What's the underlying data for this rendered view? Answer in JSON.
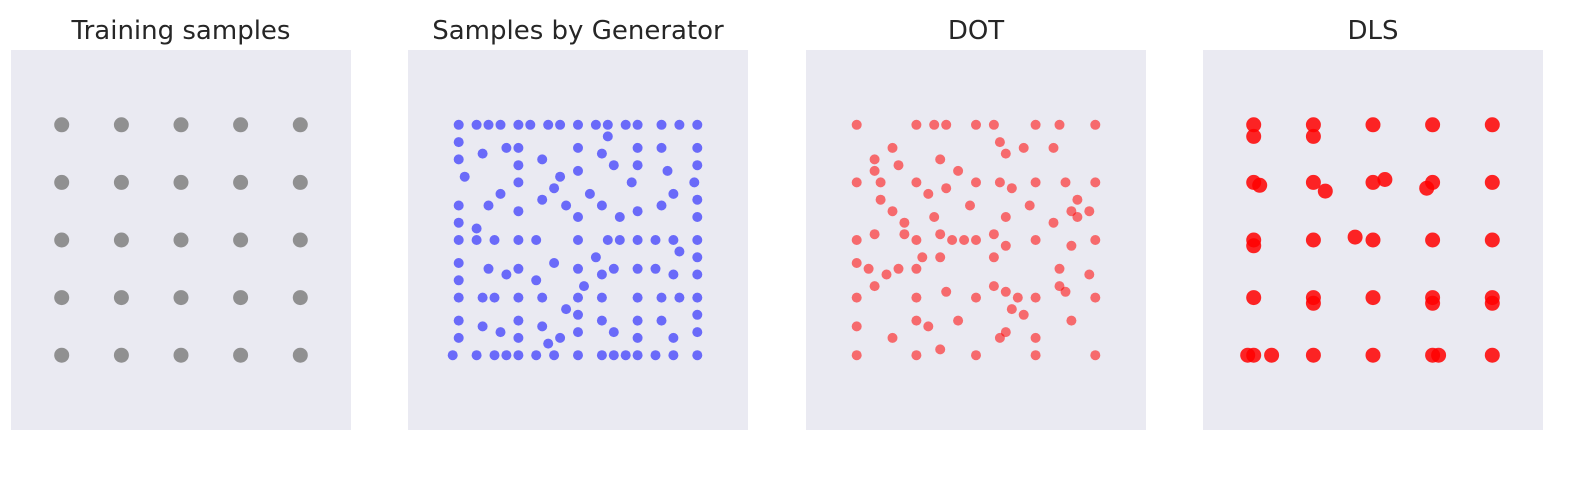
{
  "chart_data": [
    {
      "type": "scatter",
      "title": "Training samples",
      "color": "#808080",
      "grid": false,
      "axes_visible": false,
      "xlim": [
        -2.85,
        2.85
      ],
      "ylim": [
        -3.3,
        3.3
      ],
      "points": [
        [
          -2,
          2
        ],
        [
          -1,
          2
        ],
        [
          0,
          2
        ],
        [
          1,
          2
        ],
        [
          2,
          2
        ],
        [
          -2,
          1
        ],
        [
          -1,
          1
        ],
        [
          0,
          1
        ],
        [
          1,
          1
        ],
        [
          2,
          1
        ],
        [
          -2,
          0
        ],
        [
          -1,
          0
        ],
        [
          0,
          0
        ],
        [
          1,
          0
        ],
        [
          2,
          0
        ],
        [
          -2,
          -1
        ],
        [
          -1,
          -1
        ],
        [
          0,
          -1
        ],
        [
          1,
          -1
        ],
        [
          2,
          -1
        ],
        [
          -2,
          -2
        ],
        [
          -1,
          -2
        ],
        [
          0,
          -2
        ],
        [
          1,
          -2
        ],
        [
          2,
          -2
        ]
      ]
    },
    {
      "type": "scatter",
      "title": "Samples by Generator",
      "color": "#0000ff",
      "grid": false,
      "axes_visible": false,
      "xlim": [
        -2.85,
        2.85
      ],
      "ylim": [
        -3.3,
        3.3
      ],
      "points": [
        [
          -2.0,
          2.0
        ],
        [
          -1.0,
          2.0
        ],
        [
          0.0,
          2.0
        ],
        [
          1.0,
          2.0
        ],
        [
          2.0,
          2.0
        ],
        [
          -2.0,
          0.0
        ],
        [
          -1.0,
          0.0
        ],
        [
          0.0,
          0.0
        ],
        [
          1.0,
          0.0
        ],
        [
          2.0,
          0.0
        ],
        [
          -2.0,
          -1.0
        ],
        [
          -1.0,
          -1.0
        ],
        [
          0.0,
          -1.0
        ],
        [
          1.0,
          -1.0
        ],
        [
          2.0,
          -1.0
        ],
        [
          -2.1,
          -2.0
        ],
        [
          -1.0,
          -2.0
        ],
        [
          0.0,
          -2.0
        ],
        [
          1.0,
          -2.0
        ],
        [
          2.0,
          -2.0
        ],
        [
          -1.9,
          1.1
        ],
        [
          -1.0,
          1.0
        ],
        [
          0.9,
          1.0
        ],
        [
          1.95,
          1.0
        ],
        [
          0.2,
          0.8
        ],
        [
          -1.7,
          2.0
        ],
        [
          -1.5,
          2.0
        ],
        [
          -1.3,
          2.0
        ],
        [
          -0.8,
          2.0
        ],
        [
          -0.5,
          2.0
        ],
        [
          -0.3,
          2.0
        ],
        [
          0.3,
          2.0
        ],
        [
          0.5,
          2.0
        ],
        [
          0.8,
          2.0
        ],
        [
          1.4,
          2.0
        ],
        [
          1.7,
          2.0
        ],
        [
          -1.7,
          -2.0
        ],
        [
          -1.4,
          -2.0
        ],
        [
          -1.2,
          -2.0
        ],
        [
          -0.7,
          -2.0
        ],
        [
          -0.4,
          -2.0
        ],
        [
          0.4,
          -2.0
        ],
        [
          0.6,
          -2.0
        ],
        [
          0.8,
          -2.0
        ],
        [
          1.3,
          -2.0
        ],
        [
          1.6,
          -2.0
        ],
        [
          -1.7,
          0.0
        ],
        [
          -1.4,
          0.0
        ],
        [
          -0.7,
          0.0
        ],
        [
          0.5,
          0.0
        ],
        [
          0.7,
          0.0
        ],
        [
          1.3,
          0.0
        ],
        [
          1.6,
          0.0
        ],
        [
          -1.6,
          -1.0
        ],
        [
          -1.4,
          -1.0
        ],
        [
          -0.6,
          -1.0
        ],
        [
          0.4,
          -1.0
        ],
        [
          1.4,
          -1.0
        ],
        [
          1.7,
          -1.0
        ],
        [
          -2.0,
          1.7
        ],
        [
          -2.0,
          1.4
        ],
        [
          -2.0,
          0.6
        ],
        [
          -2.0,
          0.3
        ],
        [
          -2.0,
          -0.4
        ],
        [
          -2.0,
          -0.7
        ],
        [
          -2.0,
          -1.4
        ],
        [
          -2.0,
          -1.7
        ],
        [
          2.0,
          1.6
        ],
        [
          2.0,
          1.3
        ],
        [
          2.0,
          0.7
        ],
        [
          2.0,
          0.4
        ],
        [
          2.0,
          -0.3
        ],
        [
          2.0,
          -0.6
        ],
        [
          2.0,
          -1.3
        ],
        [
          2.0,
          -1.6
        ],
        [
          -1.0,
          1.6
        ],
        [
          -1.0,
          1.3
        ],
        [
          0.0,
          1.6
        ],
        [
          0.0,
          1.2
        ],
        [
          1.0,
          1.6
        ],
        [
          1.0,
          1.3
        ],
        [
          -1.0,
          -1.4
        ],
        [
          -1.0,
          -1.7
        ],
        [
          0.0,
          -1.3
        ],
        [
          0.0,
          -1.6
        ],
        [
          1.0,
          -1.4
        ],
        [
          1.0,
          -1.7
        ],
        [
          -1.0,
          0.5
        ],
        [
          -1.0,
          -0.5
        ],
        [
          0.0,
          0.4
        ],
        [
          0.0,
          -0.5
        ],
        [
          1.0,
          0.5
        ],
        [
          1.0,
          -0.5
        ],
        [
          -1.6,
          1.5
        ],
        [
          -1.2,
          1.6
        ],
        [
          -0.6,
          1.4
        ],
        [
          -0.3,
          1.1
        ],
        [
          0.4,
          1.5
        ],
        [
          0.6,
          1.3
        ],
        [
          1.4,
          1.6
        ],
        [
          1.5,
          1.2
        ],
        [
          -1.5,
          0.6
        ],
        [
          -1.3,
          0.8
        ],
        [
          -0.6,
          0.7
        ],
        [
          -0.2,
          0.6
        ],
        [
          0.4,
          0.6
        ],
        [
          0.7,
          0.4
        ],
        [
          1.4,
          0.6
        ],
        [
          1.6,
          0.8
        ],
        [
          -1.5,
          -0.5
        ],
        [
          -1.2,
          -0.6
        ],
        [
          -0.4,
          -0.4
        ],
        [
          -0.7,
          -0.7
        ],
        [
          0.4,
          -0.6
        ],
        [
          0.6,
          -0.5
        ],
        [
          1.3,
          -0.5
        ],
        [
          1.6,
          -0.6
        ],
        [
          -1.6,
          -1.5
        ],
        [
          -1.3,
          -1.6
        ],
        [
          -0.6,
          -1.5
        ],
        [
          -0.3,
          -1.7
        ],
        [
          0.4,
          -1.4
        ],
        [
          0.6,
          -1.6
        ],
        [
          1.4,
          -1.4
        ],
        [
          1.6,
          -1.7
        ],
        [
          -0.4,
          0.9
        ],
        [
          0.3,
          -0.3
        ],
        [
          -0.2,
          -1.2
        ],
        [
          0.5,
          1.8
        ],
        [
          -0.5,
          -1.8
        ],
        [
          1.7,
          -0.2
        ],
        [
          -1.7,
          0.2
        ],
        [
          0.1,
          -0.8
        ]
      ]
    },
    {
      "type": "scatter",
      "title": "DOT",
      "color": "#ff0000",
      "grid": false,
      "axes_visible": false,
      "xlim": [
        -2.85,
        2.85
      ],
      "ylim": [
        -3.3,
        3.3
      ],
      "points": [
        [
          -2.0,
          2.0
        ],
        [
          -1.0,
          2.0
        ],
        [
          0.0,
          2.0
        ],
        [
          1.0,
          2.0
        ],
        [
          2.0,
          2.0
        ],
        [
          -2.0,
          1.0
        ],
        [
          -1.0,
          1.0
        ],
        [
          0.0,
          1.0
        ],
        [
          1.0,
          1.0
        ],
        [
          2.0,
          1.0
        ],
        [
          -2.0,
          0.0
        ],
        [
          -1.0,
          0.0
        ],
        [
          0.0,
          0.0
        ],
        [
          1.0,
          0.0
        ],
        [
          2.0,
          0.0
        ],
        [
          -2.0,
          -1.0
        ],
        [
          -1.0,
          -1.0
        ],
        [
          0.0,
          -1.0
        ],
        [
          1.0,
          -1.0
        ],
        [
          2.0,
          -1.0
        ],
        [
          -2.0,
          -2.0
        ],
        [
          -1.0,
          -2.0
        ],
        [
          0.0,
          -2.0
        ],
        [
          1.0,
          -2.0
        ],
        [
          2.0,
          -2.0
        ],
        [
          -0.7,
          2.0
        ],
        [
          -0.5,
          2.0
        ],
        [
          0.3,
          2.0
        ],
        [
          1.4,
          2.0
        ],
        [
          -1.4,
          1.6
        ],
        [
          -1.7,
          1.4
        ],
        [
          -1.7,
          1.2
        ],
        [
          -1.3,
          1.3
        ],
        [
          -0.6,
          1.4
        ],
        [
          -0.3,
          1.2
        ],
        [
          0.4,
          1.7
        ],
        [
          0.5,
          1.5
        ],
        [
          0.8,
          1.6
        ],
        [
          1.3,
          1.6
        ],
        [
          -1.6,
          1.0
        ],
        [
          -0.8,
          0.8
        ],
        [
          -0.5,
          0.9
        ],
        [
          0.4,
          1.0
        ],
        [
          0.6,
          0.9
        ],
        [
          1.5,
          1.0
        ],
        [
          1.7,
          0.7
        ],
        [
          -1.6,
          0.7
        ],
        [
          -1.4,
          0.5
        ],
        [
          -1.2,
          0.3
        ],
        [
          -0.7,
          0.4
        ],
        [
          -0.6,
          0.1
        ],
        [
          -0.1,
          0.6
        ],
        [
          0.5,
          0.4
        ],
        [
          0.9,
          0.6
        ],
        [
          1.3,
          0.3
        ],
        [
          1.6,
          0.5
        ],
        [
          1.7,
          0.4
        ],
        [
          1.9,
          0.5
        ],
        [
          -1.7,
          0.1
        ],
        [
          -1.2,
          0.1
        ],
        [
          -0.4,
          0.0
        ],
        [
          -0.2,
          0.0
        ],
        [
          0.3,
          0.1
        ],
        [
          0.5,
          -0.1
        ],
        [
          1.6,
          -0.1
        ],
        [
          -2.0,
          -0.4
        ],
        [
          -1.8,
          -0.5
        ],
        [
          -1.5,
          -0.6
        ],
        [
          -1.3,
          -0.5
        ],
        [
          -1.0,
          -0.5
        ],
        [
          -0.6,
          -0.3
        ],
        [
          -0.9,
          -0.3
        ],
        [
          0.3,
          -0.3
        ],
        [
          1.4,
          -0.5
        ],
        [
          1.9,
          -0.6
        ],
        [
          -1.7,
          -0.8
        ],
        [
          -0.5,
          -0.9
        ],
        [
          0.3,
          -0.8
        ],
        [
          0.5,
          -0.9
        ],
        [
          0.7,
          -1.0
        ],
        [
          0.6,
          -1.2
        ],
        [
          1.4,
          -0.8
        ],
        [
          1.5,
          -0.9
        ],
        [
          -1.0,
          -1.4
        ],
        [
          -0.8,
          -1.5
        ],
        [
          -0.3,
          -1.4
        ],
        [
          0.5,
          -1.6
        ],
        [
          0.8,
          -1.3
        ],
        [
          1.6,
          -1.4
        ],
        [
          -2.0,
          -1.5
        ],
        [
          -1.4,
          -1.7
        ],
        [
          -0.6,
          -1.9
        ],
        [
          0.4,
          -1.7
        ],
        [
          1.0,
          -1.7
        ]
      ]
    },
    {
      "type": "scatter",
      "title": "DLS",
      "color": "#ff0000",
      "grid": false,
      "axes_visible": false,
      "xlim": [
        -2.85,
        2.85
      ],
      "ylim": [
        -3.3,
        3.3
      ],
      "points": [
        [
          -2,
          2
        ],
        [
          -1,
          2
        ],
        [
          0,
          2
        ],
        [
          1,
          2
        ],
        [
          2,
          2
        ],
        [
          -2,
          1
        ],
        [
          -1,
          1
        ],
        [
          0,
          1
        ],
        [
          1,
          1
        ],
        [
          2,
          1
        ],
        [
          -2,
          0
        ],
        [
          -1,
          0
        ],
        [
          0,
          0
        ],
        [
          1,
          0
        ],
        [
          2,
          0
        ],
        [
          -2,
          -1
        ],
        [
          -1,
          -1
        ],
        [
          0,
          -1
        ],
        [
          1,
          -1
        ],
        [
          2,
          -1
        ],
        [
          -2,
          -2
        ],
        [
          -1,
          -2
        ],
        [
          0,
          -2
        ],
        [
          1,
          -2
        ],
        [
          2,
          -2
        ],
        [
          -2.0,
          1.8
        ],
        [
          -1.0,
          1.8
        ],
        [
          -1.9,
          0.95
        ],
        [
          -0.8,
          0.85
        ],
        [
          0.2,
          1.05
        ],
        [
          0.9,
          0.9
        ],
        [
          -0.3,
          0.05
        ],
        [
          -1.7,
          -2.0
        ],
        [
          -2.1,
          -2.0
        ],
        [
          1.1,
          -2.0
        ],
        [
          -1.0,
          -1.1
        ],
        [
          1.0,
          -1.1
        ],
        [
          2.0,
          -1.1
        ],
        [
          -2.0,
          -0.1
        ]
      ]
    }
  ]
}
